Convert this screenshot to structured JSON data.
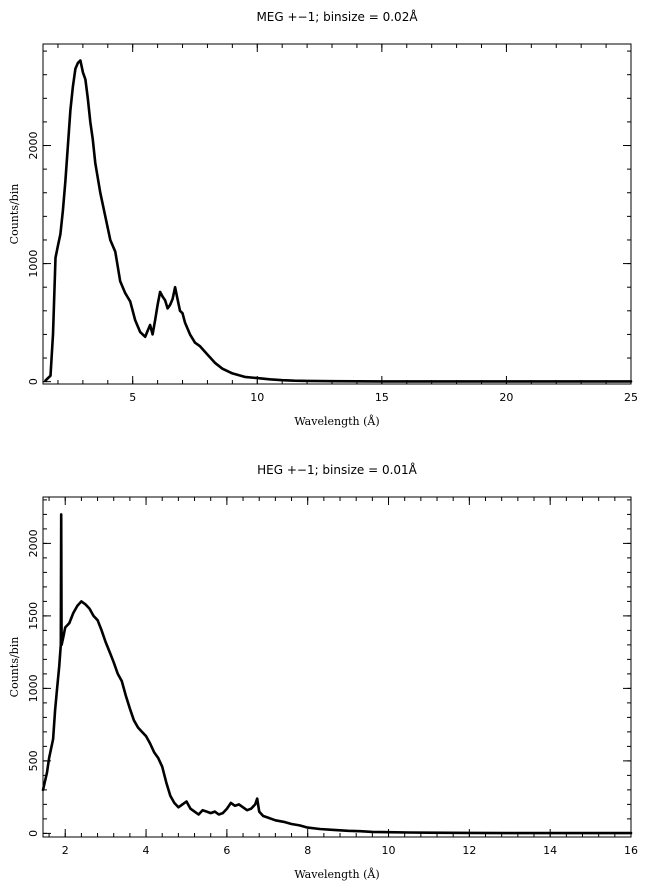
{
  "chart_data": [
    {
      "type": "line",
      "title": "MEG +−1; binsize = 0.02Å",
      "xlabel": "Wavelength (Å)",
      "ylabel": "Counts/bin",
      "xlim": [
        1.4,
        25
      ],
      "ylim": [
        -20,
        2860
      ],
      "xticks": [
        5,
        10,
        15,
        20,
        25
      ],
      "xtick_labels": [
        "5",
        "10",
        "15",
        "20",
        "25"
      ],
      "yticks": [
        0,
        1000,
        2000
      ],
      "ytick_labels": [
        "0",
        "1000",
        "2000"
      ],
      "grid": false,
      "series": [
        {
          "x": [
            1.5,
            1.7,
            1.8,
            1.9,
            2.0,
            2.1,
            2.2,
            2.3,
            2.4,
            2.5,
            2.6,
            2.7,
            2.8,
            2.9,
            3.0,
            3.1,
            3.2,
            3.3,
            3.4,
            3.5,
            3.7,
            3.9,
            4.1,
            4.3,
            4.5,
            4.7,
            4.9,
            5.0,
            5.1,
            5.3,
            5.5,
            5.6,
            5.7,
            5.8,
            5.9,
            6.0,
            6.1,
            6.2,
            6.3,
            6.4,
            6.5,
            6.6,
            6.7,
            6.8,
            6.9,
            7.0,
            7.1,
            7.3,
            7.5,
            7.7,
            8.0,
            8.3,
            8.6,
            9.0,
            9.5,
            10.0,
            10.5,
            11.0,
            11.5,
            12.0,
            13.0,
            14.0,
            15.0,
            17.0,
            20.0,
            22.5,
            25.0
          ],
          "y": [
            10,
            50,
            400,
            1050,
            1150,
            1250,
            1450,
            1700,
            2000,
            2300,
            2500,
            2650,
            2700,
            2720,
            2620,
            2560,
            2400,
            2200,
            2050,
            1850,
            1600,
            1400,
            1200,
            1100,
            850,
            750,
            680,
            600,
            520,
            420,
            380,
            430,
            480,
            400,
            520,
            650,
            760,
            720,
            690,
            620,
            650,
            700,
            800,
            700,
            600,
            580,
            500,
            400,
            330,
            300,
            230,
            160,
            110,
            70,
            40,
            30,
            20,
            12,
            8,
            6,
            4,
            3,
            2,
            2,
            2,
            2,
            2
          ]
        }
      ]
    },
    {
      "type": "line",
      "title": "HEG +−1; binsize = 0.01Å",
      "xlabel": "Wavelength (Å)",
      "ylabel": "Counts/bin",
      "xlim": [
        1.45,
        16
      ],
      "ylim": [
        -25,
        2320
      ],
      "xticks": [
        2,
        4,
        6,
        8,
        10,
        12,
        14,
        16
      ],
      "xtick_labels": [
        "2",
        "4",
        "6",
        "8",
        "10",
        "12",
        "14",
        "16"
      ],
      "yticks": [
        0,
        500,
        1000,
        1500,
        2000
      ],
      "ytick_labels": [
        "0",
        "500",
        "1000",
        "1500",
        "2000"
      ],
      "grid": false,
      "series": [
        {
          "x": [
            1.45,
            1.55,
            1.6,
            1.7,
            1.75,
            1.8,
            1.85,
            1.89,
            1.9,
            1.91,
            1.95,
            2.0,
            2.1,
            2.2,
            2.3,
            2.4,
            2.5,
            2.6,
            2.7,
            2.8,
            2.9,
            3.0,
            3.1,
            3.2,
            3.3,
            3.4,
            3.5,
            3.6,
            3.7,
            3.8,
            3.9,
            4.0,
            4.1,
            4.2,
            4.3,
            4.4,
            4.5,
            4.6,
            4.7,
            4.8,
            4.9,
            5.0,
            5.1,
            5.2,
            5.3,
            5.4,
            5.5,
            5.6,
            5.7,
            5.8,
            5.9,
            6.0,
            6.1,
            6.2,
            6.3,
            6.4,
            6.5,
            6.6,
            6.7,
            6.75,
            6.8,
            6.9,
            7.0,
            7.2,
            7.4,
            7.6,
            7.8,
            8.0,
            8.3,
            8.6,
            9.0,
            9.3,
            9.6,
            10.0,
            10.5,
            11.0,
            12.0,
            13.0,
            14.0,
            15.0,
            16.0
          ],
          "y": [
            300,
            420,
            520,
            650,
            850,
            1000,
            1150,
            1300,
            2200,
            1300,
            1350,
            1420,
            1450,
            1520,
            1570,
            1600,
            1580,
            1550,
            1500,
            1470,
            1400,
            1320,
            1250,
            1180,
            1100,
            1050,
            950,
            860,
            780,
            730,
            700,
            670,
            620,
            560,
            520,
            460,
            350,
            260,
            210,
            180,
            200,
            220,
            170,
            150,
            130,
            160,
            150,
            140,
            150,
            130,
            140,
            170,
            210,
            190,
            200,
            180,
            160,
            170,
            200,
            240,
            150,
            120,
            110,
            90,
            80,
            65,
            55,
            40,
            30,
            25,
            18,
            15,
            10,
            8,
            6,
            5,
            3,
            2,
            2,
            2,
            2
          ]
        }
      ]
    }
  ]
}
